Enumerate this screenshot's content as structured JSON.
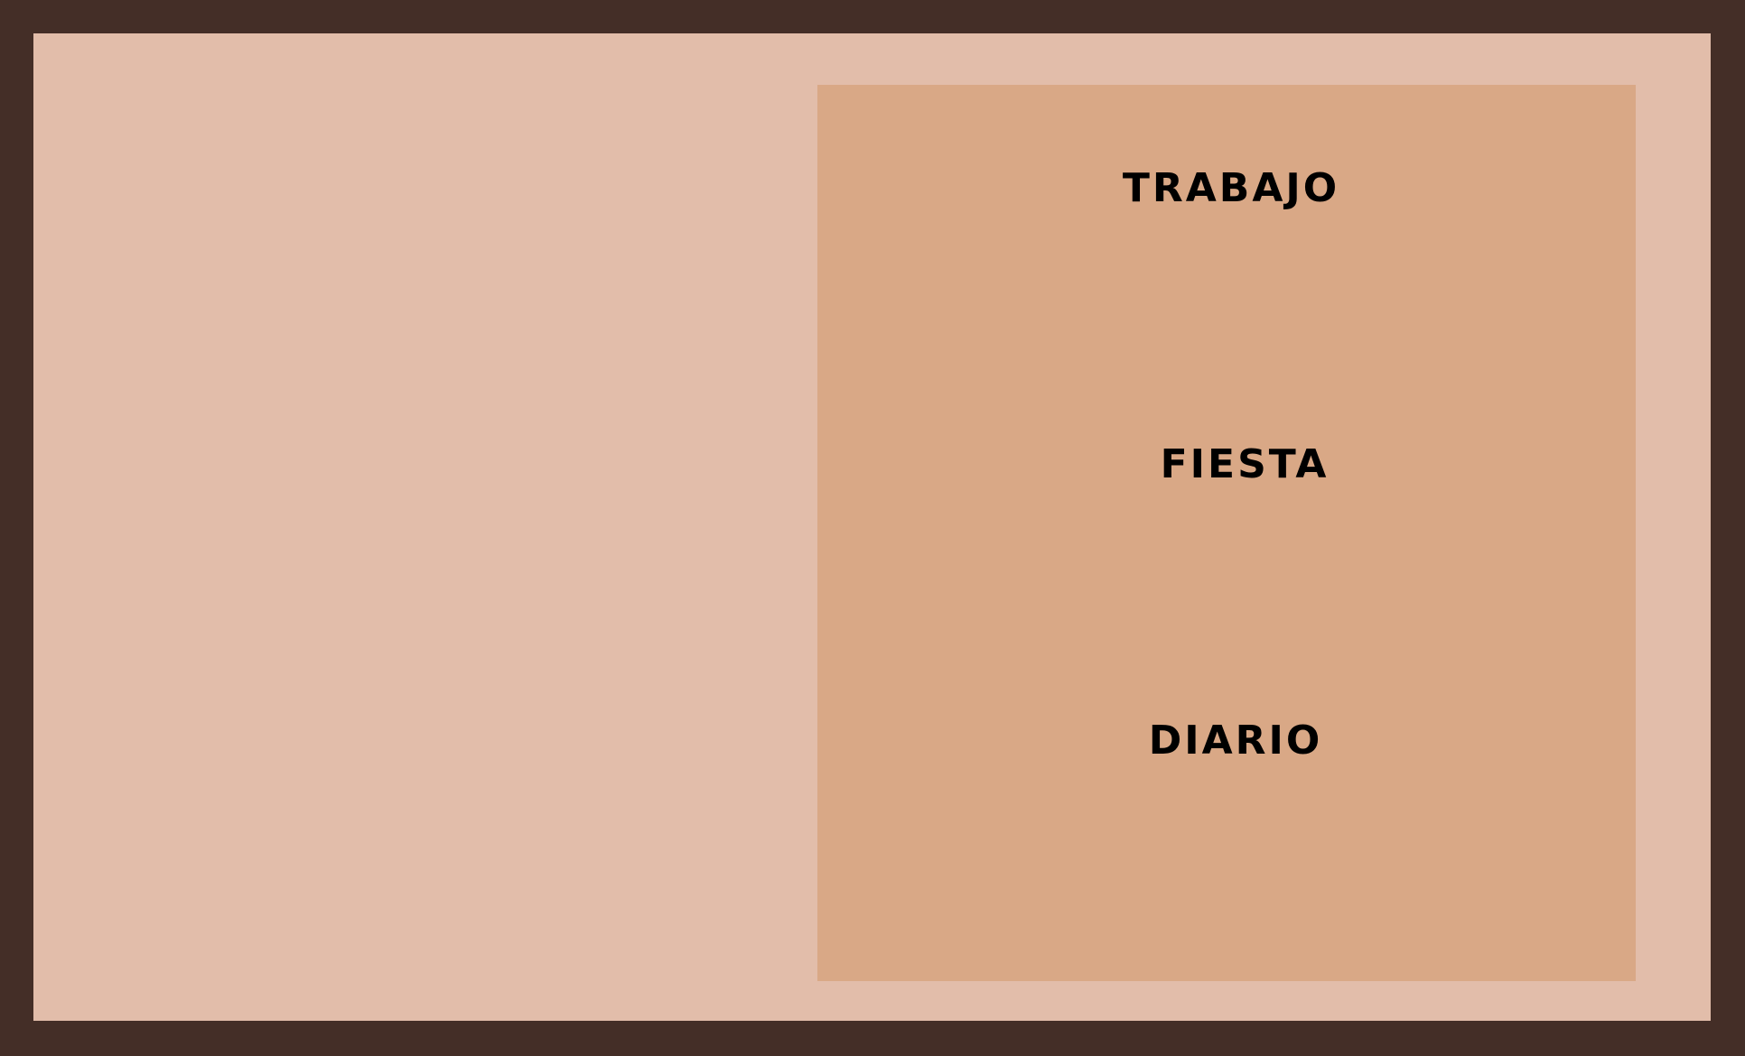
{
  "menu": {
    "items": [
      {
        "label": "TRABAJO"
      },
      {
        "label": "FIESTA"
      },
      {
        "label": "DIARIO"
      }
    ]
  },
  "colors": {
    "frame": "#442e27",
    "background": "#e2bdaa",
    "panel": "#d9a886",
    "text": "#000000"
  }
}
